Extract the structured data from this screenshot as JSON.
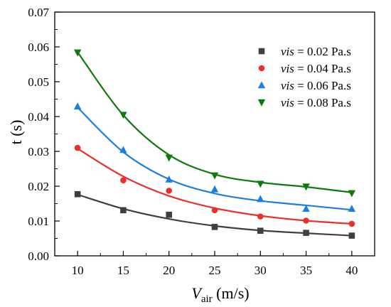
{
  "chart_data": {
    "type": "scatter",
    "xlabel": {
      "main": "V",
      "sub": "air",
      "unit": " (m/s)"
    },
    "ylabel": "t (s)",
    "xlim": [
      7.5,
      42.5
    ],
    "ylim": [
      0,
      0.07
    ],
    "x_ticks": [
      "10",
      "15",
      "20",
      "25",
      "30",
      "35",
      "40"
    ],
    "y_ticks": [
      "0.00",
      "0.01",
      "0.02",
      "0.03",
      "0.04",
      "0.05",
      "0.06",
      "0.07"
    ],
    "legend_position": "top-right",
    "x": [
      10,
      15,
      20,
      25,
      30,
      35,
      40
    ],
    "series": [
      {
        "name_prefix": "vis",
        "name_suffix": " = 0.02 Pa.s",
        "color": "#3f3f3f",
        "marker": "square",
        "points": [
          0.0177,
          0.0131,
          0.0118,
          0.0083,
          0.0072,
          0.0066,
          0.0058
        ],
        "fit": [
          0.0176,
          0.0135,
          0.0106,
          0.0086,
          0.0073,
          0.0065,
          0.0058
        ]
      },
      {
        "name_prefix": "vis",
        "name_suffix": " = 0.04 Pa.s",
        "color": "#e8302c",
        "marker": "circle",
        "points": [
          0.031,
          0.0217,
          0.0187,
          0.0131,
          0.0113,
          0.0101,
          0.0092
        ],
        "fit": [
          0.0308,
          0.0228,
          0.0172,
          0.0137,
          0.0115,
          0.0101,
          0.0092
        ]
      },
      {
        "name_prefix": "vis",
        "name_suffix": " = 0.06 Pa.s",
        "color": "#1e7ee0",
        "marker": "triangle-up",
        "points": [
          0.0429,
          0.0304,
          0.0219,
          0.0191,
          0.0163,
          0.0135,
          0.0135
        ],
        "fit": [
          0.0426,
          0.0298,
          0.022,
          0.0179,
          0.0158,
          0.0145,
          0.0132
        ]
      },
      {
        "name_prefix": "vis",
        "name_suffix": " = 0.08 Pa.s",
        "color": "#0e7a0e",
        "marker": "triangle-down",
        "points": [
          0.0584,
          0.0405,
          0.0282,
          0.0231,
          0.0207,
          0.0199,
          0.018
        ],
        "fit": [
          0.0585,
          0.0404,
          0.029,
          0.0234,
          0.0211,
          0.0198,
          0.0182
        ]
      }
    ]
  }
}
